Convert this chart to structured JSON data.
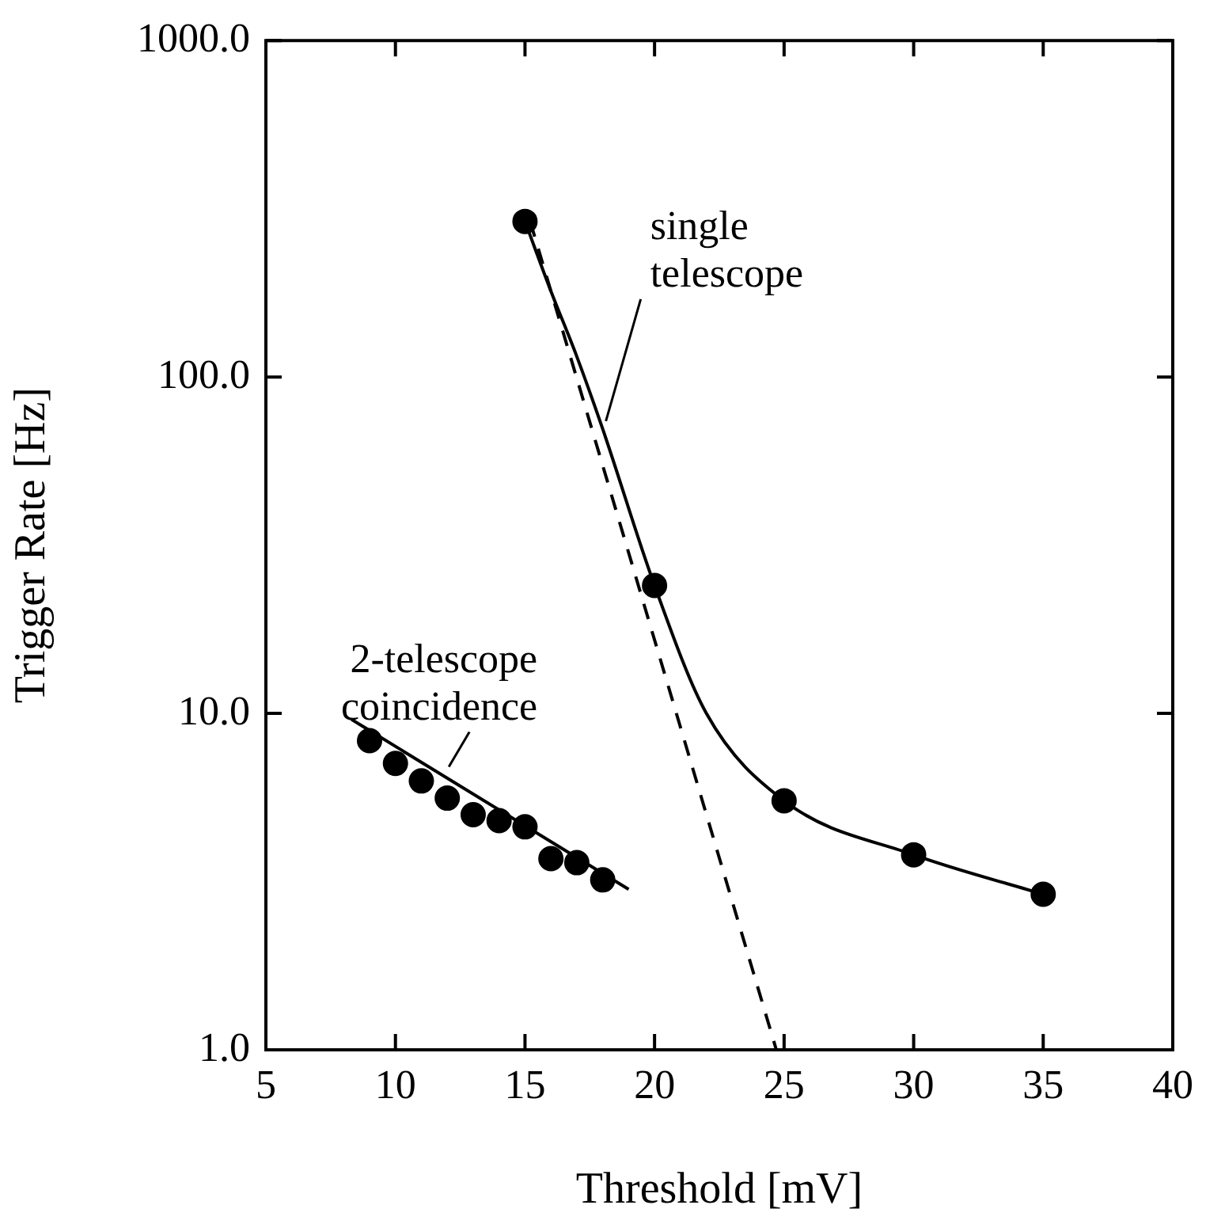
{
  "chart_data": {
    "type": "scatter",
    "xlabel": "Threshold [mV]",
    "ylabel": "Trigger Rate [Hz]",
    "log": "y",
    "marker": "circle",
    "xlim": [
      5,
      40
    ],
    "xticks": [
      5,
      10,
      15,
      20,
      25,
      30,
      35,
      40
    ],
    "ylim": [
      1,
      1000
    ],
    "yticks": [
      {
        "value": 1,
        "label": "1.0"
      },
      {
        "value": 10,
        "label": "10.0"
      },
      {
        "value": 100,
        "label": "100.0"
      },
      {
        "value": 1000,
        "label": "1000.0"
      }
    ],
    "series": [
      {
        "color": "#000000",
        "x": [
          9,
          10,
          11,
          12,
          13,
          14,
          15,
          16,
          17,
          18
        ],
        "values": [
          8.3,
          7.1,
          6.3,
          5.6,
          5.0,
          4.8,
          4.6,
          3.7,
          3.6,
          3.2
        ]
      },
      {
        "color": "#000000",
        "x": [
          15,
          20,
          25,
          30,
          35
        ],
        "values": [
          290,
          24,
          5.5,
          3.8,
          2.9
        ]
      },
      {
        "type": "line",
        "marker": "none",
        "line_style": "solid",
        "color": "#000000",
        "x": [
          8.3,
          19
        ],
        "values": [
          9.6,
          3.0
        ]
      },
      {
        "type": "line",
        "marker": "none",
        "line_style": "solid",
        "color": "#000000",
        "x": [
          15,
          16,
          17,
          18,
          20,
          22,
          25,
          30,
          35
        ],
        "values": [
          290,
          180,
          115,
          70,
          24,
          10,
          5.5,
          3.8,
          2.9
        ]
      },
      {
        "type": "line",
        "marker": "none",
        "line_style": "dashed",
        "color": "#000000",
        "x": [
          15.2,
          24.7
        ],
        "values": [
          290,
          1.0
        ]
      }
    ],
    "annotations": [
      {
        "text": "single\ntelescope",
        "x": 18,
        "y": 70
      },
      {
        "text": "2-telescope\ncoincidence",
        "x": 12,
        "y": 6.5
      }
    ]
  }
}
